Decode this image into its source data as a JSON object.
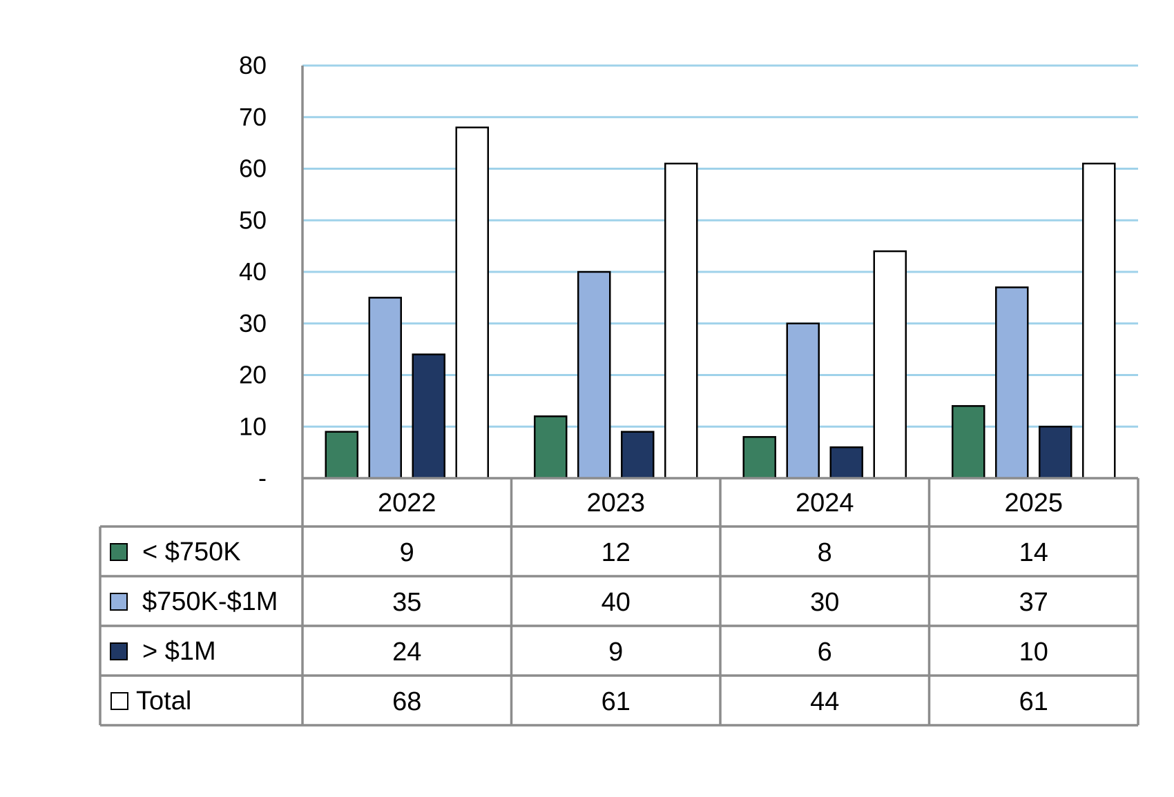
{
  "chart_data": {
    "type": "bar",
    "categories": [
      "2022",
      "2023",
      "2024",
      "2025"
    ],
    "series": [
      {
        "name": "< $750K",
        "values": [
          9,
          12,
          8,
          14
        ],
        "color": "#3a7f60"
      },
      {
        "name": "$750K-$1M",
        "values": [
          35,
          40,
          30,
          37
        ],
        "color": "#94b1de"
      },
      {
        "name": "> $1M",
        "values": [
          24,
          9,
          6,
          10
        ],
        "color": "#203864"
      },
      {
        "name": "Total",
        "values": [
          68,
          61,
          44,
          61
        ],
        "color": "#ffffff"
      }
    ],
    "ylim": [
      0,
      80
    ],
    "yticks": [
      0,
      10,
      20,
      30,
      40,
      50,
      60,
      70,
      80
    ],
    "ytick_labels": [
      "-",
      "10",
      "20",
      "30",
      "40",
      "50",
      "60",
      "70",
      "80"
    ],
    "grid": true,
    "gridline_color": "#9fd2ea",
    "legend": "data-table"
  }
}
